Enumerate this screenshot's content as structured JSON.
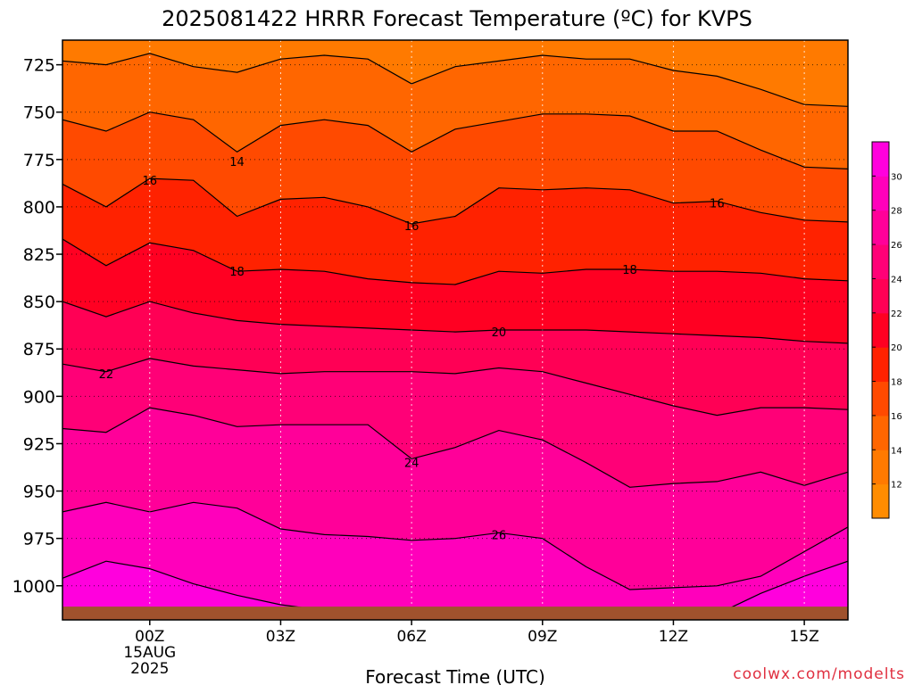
{
  "chart_data": {
    "type": "heatmap",
    "title": "2025081422 HRRR Forecast Temperature (ºC) for KVPS",
    "xlabel": "Forecast Time (UTC)",
    "x_ticks": [
      {
        "hour": 0,
        "label": "00Z",
        "sub": [
          "15AUG",
          "2025"
        ]
      },
      {
        "hour": 3,
        "label": "03Z"
      },
      {
        "hour": 6,
        "label": "06Z"
      },
      {
        "hour": 9,
        "label": "09Z"
      },
      {
        "hour": 12,
        "label": "12Z"
      },
      {
        "hour": 15,
        "label": "15Z"
      }
    ],
    "xlim": [
      -2,
      16
    ],
    "y_ticks": [
      725,
      750,
      775,
      800,
      825,
      850,
      875,
      900,
      925,
      950,
      975,
      1000
    ],
    "ylim": [
      1018,
      712
    ],
    "grid": true,
    "credit": "coolwx.com/modelts",
    "colorbar": {
      "levels": [
        10,
        12,
        14,
        16,
        18,
        20,
        22,
        24,
        26,
        28,
        30,
        32
      ],
      "labels": [
        "12",
        "14",
        "16",
        "18",
        "20",
        "22",
        "24",
        "26",
        "28",
        "30"
      ],
      "colors": [
        "#ff8c00",
        "#ff7a00",
        "#ff6600",
        "#ff4a00",
        "#ff2200",
        "#ff0022",
        "#ff0055",
        "#ff0077",
        "#ff0099",
        "#ff00bb",
        "#ff00dd"
      ]
    },
    "contour_levels": [
      13,
      14,
      15,
      16,
      17,
      18,
      19,
      20,
      21,
      22,
      23,
      24,
      25,
      26,
      27,
      28
    ],
    "x": [
      -2,
      -1,
      0,
      1,
      2,
      3,
      4,
      5,
      6,
      7,
      8,
      9,
      10,
      11,
      12,
      13,
      14,
      15,
      16
    ],
    "isotherm_pressures": [
      [
        723,
        725,
        719,
        726,
        729,
        722,
        720,
        722,
        735,
        726,
        723,
        720,
        722,
        722,
        728,
        731,
        738,
        746,
        747
      ],
      [
        754,
        760,
        750,
        754,
        771,
        757,
        754,
        757,
        771,
        759,
        755,
        751,
        751,
        752,
        760,
        760,
        770,
        779,
        780
      ],
      [
        788,
        800,
        785,
        786,
        805,
        796,
        795,
        800,
        809,
        805,
        790,
        791,
        790,
        791,
        798,
        797,
        803,
        807,
        808
      ],
      [
        817,
        831,
        819,
        823,
        834,
        833,
        834,
        838,
        840,
        841,
        834,
        835,
        833,
        833,
        834,
        834,
        835,
        838,
        839
      ],
      [
        850,
        858,
        850,
        856,
        860,
        862,
        863,
        864,
        865,
        866,
        865,
        865,
        865,
        866,
        867,
        868,
        869,
        871,
        872
      ],
      [
        883,
        887,
        880,
        884,
        886,
        888,
        887,
        887,
        887,
        888,
        885,
        887,
        893,
        899,
        905,
        910,
        906,
        906,
        907
      ],
      [
        917,
        919,
        906,
        910,
        916,
        915,
        915,
        915,
        933,
        927,
        918,
        923,
        935,
        948,
        946,
        945,
        940,
        947,
        940
      ],
      [
        961,
        956,
        961,
        956,
        959,
        970,
        973,
        974,
        976,
        975,
        972,
        975,
        990,
        1002,
        1001,
        1000,
        995,
        982,
        969
      ],
      [
        996,
        987,
        991,
        999,
        1005,
        1010,
        1013,
        1014,
        1015,
        1014,
        1014,
        1015,
        1015,
        1016,
        1016,
        1015,
        1004,
        995,
        987
      ]
    ],
    "labels": [
      {
        "text": "14",
        "hour": 2,
        "pressure": 776
      },
      {
        "text": "16",
        "hour": 0,
        "pressure": 786
      },
      {
        "text": "16",
        "hour": 6,
        "pressure": 810
      },
      {
        "text": "16",
        "hour": 13,
        "pressure": 798
      },
      {
        "text": "18",
        "hour": 2,
        "pressure": 834
      },
      {
        "text": "18",
        "hour": 11,
        "pressure": 833
      },
      {
        "text": "20",
        "hour": 8,
        "pressure": 866
      },
      {
        "text": "22",
        "hour": -1,
        "pressure": 888
      },
      {
        "text": "24",
        "hour": 6,
        "pressure": 935
      },
      {
        "text": "26",
        "hour": 8,
        "pressure": 973
      }
    ],
    "ground": {
      "color": "#a0522d",
      "top_pressure": 1011
    }
  }
}
